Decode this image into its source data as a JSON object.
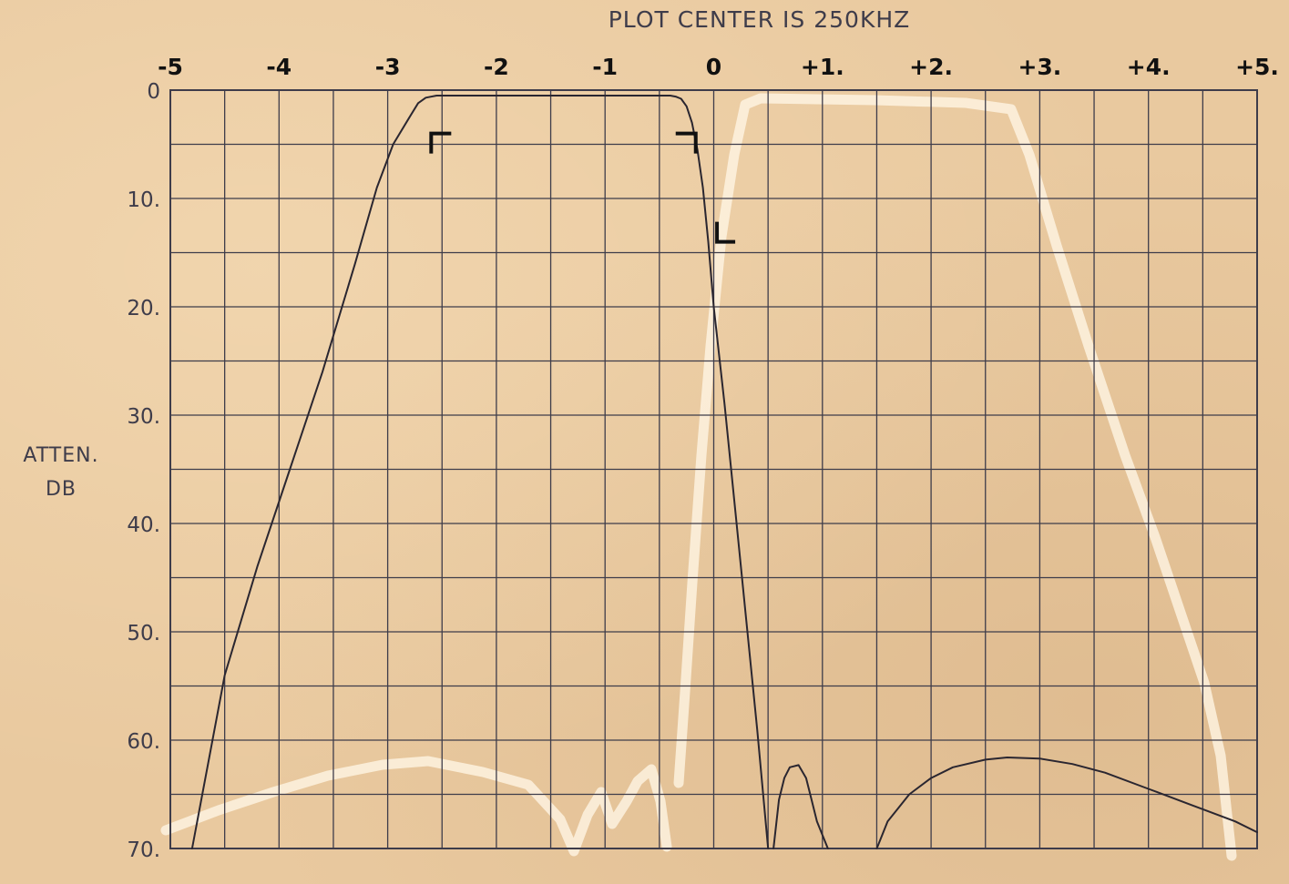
{
  "chart_data": {
    "type": "line",
    "title": "PLOT CENTER IS 250KHZ",
    "ylabel_lines": [
      "ATTEN.",
      "DB"
    ],
    "x_tick_labels": [
      "-5",
      "-4",
      "-3",
      "-2",
      "-1",
      "0",
      "+1.",
      "+2.",
      "+3.",
      "+4.",
      "+5."
    ],
    "x_ticks": [
      -5,
      -4,
      -3,
      -2,
      -1,
      0,
      1,
      2,
      3,
      4,
      5
    ],
    "y_tick_labels": [
      "0",
      "10.",
      "20.",
      "30.",
      "40.",
      "50.",
      "60.",
      "70."
    ],
    "y_ticks": [
      0,
      10,
      20,
      30,
      40,
      50,
      60,
      70
    ],
    "xlim": [
      -5,
      5
    ],
    "ylim": [
      0,
      70
    ],
    "y_inverted": true,
    "grid": true,
    "series": [
      {
        "segments": [
          {
            "x": [
              -4.8,
              -4.65,
              -4.5,
              -4.2,
              -3.9,
              -3.6,
              -3.3,
              -3.1,
              -2.95,
              -2.8,
              -2.72,
              -2.65,
              -2.55,
              -2.4,
              -2.0,
              -1.5,
              -1.0,
              -0.5,
              -0.4,
              -0.35,
              -0.3,
              -0.25,
              -0.2,
              -0.15,
              -0.1,
              -0.05,
              0.0,
              0.1,
              0.2,
              0.3,
              0.4,
              0.5
            ],
            "y": [
              70,
              62,
              54,
              44,
              35,
              26,
              16,
              9,
              5,
              2.5,
              1.2,
              0.7,
              0.5,
              0.5,
              0.5,
              0.5,
              0.5,
              0.5,
              0.5,
              0.6,
              0.8,
              1.5,
              3,
              5.5,
              9,
              14,
              20,
              29,
              39,
              49,
              59,
              70
            ]
          },
          {
            "x": [
              0.55,
              0.6,
              0.65,
              0.7,
              0.78,
              0.85,
              0.9,
              0.95,
              1.05
            ],
            "y": [
              70,
              65.5,
              63.5,
              62.5,
              62.3,
              63.5,
              65.5,
              67.5,
              70
            ]
          },
          {
            "x": [
              1.5,
              1.6,
              1.8,
              2.0,
              2.2,
              2.5,
              2.7,
              3.0,
              3.3,
              3.6,
              4.0,
              4.4,
              4.8,
              5.0
            ],
            "y": [
              70,
              67.5,
              65,
              63.5,
              62.5,
              61.8,
              61.6,
              61.7,
              62.2,
              63,
              64.5,
              66,
              67.5,
              68.5
            ]
          }
        ]
      }
    ],
    "annotations": {
      "passband_limit_marks": [
        {
          "x": -2.6,
          "y": 4
        },
        {
          "x": -0.35,
          "y": 4
        },
        {
          "x": 0.03,
          "y": 14
        }
      ]
    }
  }
}
